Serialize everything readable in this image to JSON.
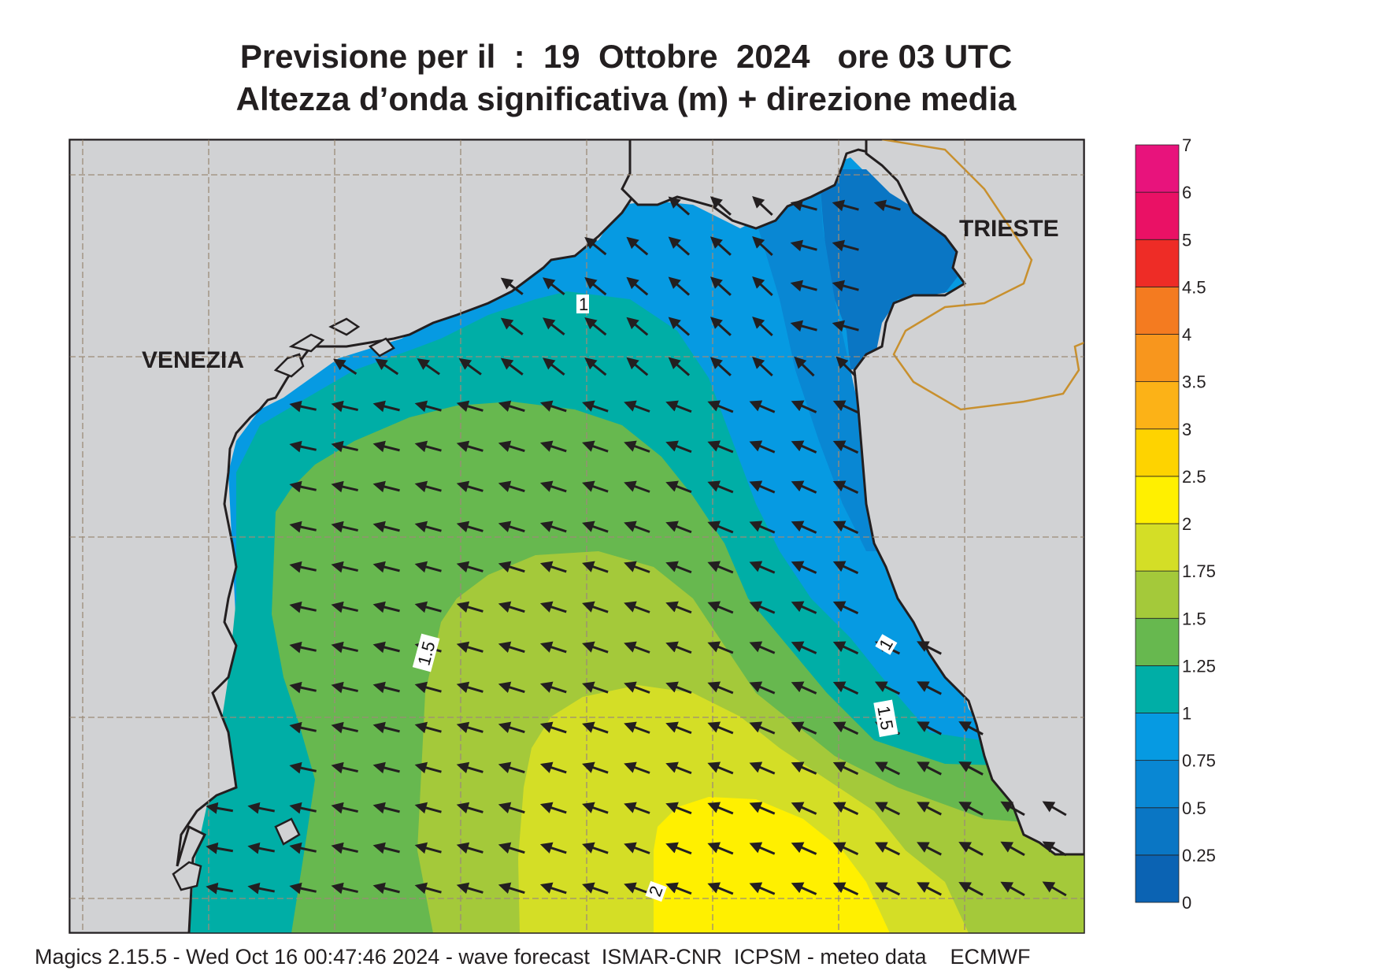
{
  "title": {
    "line1": "Previsione per il  :  19  Ottobre  2024   ore 03 UTC",
    "line2": "Altezza d’onda significativa (m) + direzione media"
  },
  "cities": {
    "venezia": "VENEZIA",
    "trieste": "TRIESTE"
  },
  "contour_labels": {
    "c1_top": "1",
    "c15_left": "1.5",
    "c1_right": "1",
    "c15_right": "1.5",
    "c2_bottom": "2"
  },
  "colorbar": {
    "labels": [
      "0",
      "0.25",
      "0.5",
      "0.75",
      "1",
      "1.25",
      "1.5",
      "1.75",
      "2",
      "2.5",
      "3",
      "3.5",
      "4",
      "4.5",
      "5",
      "6",
      "7"
    ],
    "colors": [
      "#0b63b3",
      "#0a76c4",
      "#0987d3",
      "#069ae2",
      "#00aea6",
      "#67b84f",
      "#a4c93a",
      "#d4de26",
      "#fff000",
      "#fed300",
      "#fcb217",
      "#f8961d",
      "#f47b20",
      "#ee2c26",
      "#ea1165",
      "#e8137c"
    ]
  },
  "footer": "Magics 2.15.5 - Wed Oct 16 00:47:46 2024 - wave forecast  ISMAR-CNR  ICPSM - meteo data    ECMWF",
  "map_colors": {
    "land": "#d1d2d4",
    "coast": "#231f20",
    "grid": "#9c8b78",
    "border": "#c8902e"
  },
  "field": {
    "mean_direction": "toward north-west",
    "arrow_icon": "wave-direction-arrow"
  }
}
